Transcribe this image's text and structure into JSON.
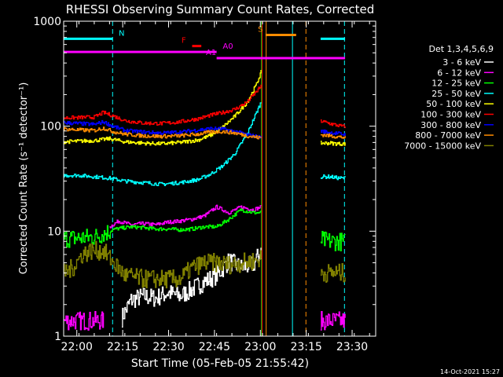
{
  "chart_data": {
    "type": "line",
    "title": "RHESSI Observing Summary Count Rates, Corrected",
    "xlabel": "Start Time (05-Feb-05 21:55:42)",
    "ylabel": "Corrected Count Rate (s⁻¹ detector⁻¹)",
    "yscale": "log",
    "ylim": [
      1,
      1000
    ],
    "xlim_minutes_since_start": [
      0,
      102
    ],
    "x_ticks": [
      {
        "label": "22:00",
        "minute": 4.3
      },
      {
        "label": "22:15",
        "minute": 19.3
      },
      {
        "label": "22:30",
        "minute": 34.3
      },
      {
        "label": "22:45",
        "minute": 49.3
      },
      {
        "label": "23:00",
        "minute": 64.3
      },
      {
        "label": "23:15",
        "minute": 79.3
      },
      {
        "label": "23:30",
        "minute": 94.3
      }
    ],
    "y_ticks": [
      {
        "label": "1",
        "value": 1
      },
      {
        "label": "10",
        "value": 10
      },
      {
        "label": "100",
        "value": 100
      },
      {
        "label": "1000",
        "value": 1000
      }
    ],
    "legend": {
      "title": "Det 1,3,4,5,6,9",
      "placement": "right"
    },
    "series": [
      {
        "name": "3 - 6 keV",
        "color": "#ffffff",
        "segments": [
          {
            "x": [
              19,
              22,
              26,
              30,
              34,
              38,
              42,
              46,
              50,
              54,
              58,
              62,
              64.5
            ],
            "y": [
              1.5,
              2.2,
              2.4,
              2.3,
              2.6,
              2.4,
              2.8,
              3.3,
              3.8,
              5.2,
              4.5,
              4.8,
              6.5
            ]
          }
        ]
      },
      {
        "name": "6 - 12 keV",
        "color": "#ff00ff",
        "segments": [
          {
            "x": [
              0,
              5,
              10,
              13
            ],
            "y": [
              1.4,
              1.4,
              1.4,
              1.4
            ]
          },
          {
            "x": [
              15,
              18,
              22,
              26,
              30,
              34,
              38,
              42,
              46,
              50,
              54,
              58,
              62,
              64.5
            ],
            "y": [
              11,
              12.5,
              11.5,
              11.8,
              11.5,
              12.2,
              12.5,
              13,
              14,
              17,
              15,
              17,
              16,
              17
            ]
          },
          {
            "x": [
              84,
              87,
              90,
              92
            ],
            "y": [
              1.4,
              1.4,
              1.4,
              1.4
            ]
          }
        ]
      },
      {
        "name": "12 - 25 keV",
        "color": "#00ff00",
        "segments": [
          {
            "x": [
              0,
              5,
              10,
              13,
              17,
              22,
              26,
              30,
              34,
              38,
              42,
              46,
              50,
              54,
              58,
              62,
              64.5
            ],
            "y": [
              8.5,
              8.6,
              8.8,
              9.5,
              10.5,
              11,
              10.8,
              10.5,
              10.5,
              10.3,
              10.5,
              11,
              11,
              13,
              16,
              15,
              15
            ]
          },
          {
            "x": [
              84,
              87,
              90,
              92
            ],
            "y": [
              8.2,
              8,
              8,
              7.8
            ]
          }
        ]
      },
      {
        "name": "25 - 50 keV",
        "color": "#00ffff",
        "segments": [
          {
            "x": [
              0,
              5,
              10,
              15,
              20,
              26,
              32,
              38,
              44,
              48,
              52,
              56,
              60,
              64.5
            ],
            "y": [
              34,
              34,
              33,
              32,
              30,
              29,
              28,
              29,
              31,
              35,
              42,
              55,
              85,
              170
            ]
          },
          {
            "x": [
              84,
              87,
              90,
              92
            ],
            "y": [
              33,
              33,
              32,
              32
            ]
          }
        ]
      },
      {
        "name": "50 - 100 keV",
        "color": "#ffff00",
        "segments": [
          {
            "x": [
              0,
              5,
              10,
              15,
              20,
              26,
              32,
              38,
              44,
              48,
              52,
              56,
              60,
              63,
              64.5
            ],
            "y": [
              71,
              72,
              73,
              76,
              71,
              69,
              68,
              70,
              74,
              82,
              98,
              125,
              170,
              250,
              330
            ]
          },
          {
            "x": [
              84,
              87,
              90,
              92
            ],
            "y": [
              69,
              69,
              68,
              68
            ]
          }
        ]
      },
      {
        "name": "100 - 300 keV",
        "color": "#ff0000",
        "segments": [
          {
            "x": [
              0,
              5,
              10,
              13,
              16,
              20,
              26,
              32,
              38,
              44,
              48,
              52,
              56,
              60,
              64.5
            ],
            "y": [
              120,
              121,
              122,
              135,
              126,
              113,
              107,
              106,
              110,
              118,
              127,
              135,
              145,
              170,
              240
            ]
          },
          {
            "x": [
              84,
              87,
              90,
              92
            ],
            "y": [
              112,
              106,
              101,
              99
            ]
          }
        ]
      },
      {
        "name": "300 - 800 keV",
        "color": "#0000ff",
        "segments": [
          {
            "x": [
              0,
              5,
              10,
              13,
              16,
              20,
              26,
              32,
              38,
              44,
              48,
              52,
              56,
              60,
              64.5
            ],
            "y": [
              108,
              106,
              104,
              110,
              100,
              91,
              88,
              86,
              88,
              92,
              95,
              94,
              89,
              83,
              78
            ]
          },
          {
            "x": [
              84,
              87,
              90,
              92
            ],
            "y": [
              90,
              87,
              85,
              83
            ]
          }
        ]
      },
      {
        "name": "800 - 7000 keV",
        "color": "#ff8c00",
        "segments": [
          {
            "x": [
              0,
              5,
              10,
              13,
              16,
              20,
              26,
              32,
              38,
              44,
              48,
              52,
              56,
              60,
              64.5
            ],
            "y": [
              94,
              92,
              91,
              96,
              89,
              84,
              81,
              80,
              81,
              84,
              88,
              89,
              86,
              81,
              77
            ]
          },
          {
            "x": [
              84,
              87,
              90,
              92
            ],
            "y": [
              83,
              81,
              79,
              78
            ]
          }
        ]
      },
      {
        "name": "7000 - 15000 keV",
        "color": "#808000",
        "segments": [
          {
            "x": [
              0,
              3,
              6,
              9,
              13,
              15,
              20,
              26,
              32,
              38,
              42,
              46,
              50,
              54,
              58,
              62,
              64.5
            ],
            "y": [
              4,
              4.5,
              6,
              6.5,
              6.5,
              5.5,
              3.8,
              3.5,
              3.5,
              3.5,
              4.5,
              5,
              5,
              4.8,
              5,
              5.2,
              5.5
            ]
          },
          {
            "x": [
              84,
              87,
              90,
              92
            ],
            "y": [
              4,
              4,
              4,
              4
            ]
          }
        ]
      }
    ],
    "markers": [
      {
        "label": "N",
        "color": "#00ffff",
        "segments": [
          [
            0,
            16
          ],
          [
            84,
            92
          ]
        ],
        "y": 680,
        "label_x": 18
      },
      {
        "label": "F",
        "color": "#ff0000",
        "segments": [
          [
            42,
            45
          ]
        ],
        "y": 580,
        "label_x": 38.5
      },
      {
        "label": "A0",
        "color": "#ff00ff",
        "segments": [
          [
            0,
            50
          ]
        ],
        "y": 510,
        "label_x": 52
      },
      {
        "label": "A1",
        "color": "#ff00ff",
        "segments": [
          [
            50,
            92
          ]
        ],
        "y": 445,
        "label_x": 46.5
      },
      {
        "label": "S",
        "color": "#ff8c00",
        "segments": [
          [
            66,
            76
          ]
        ],
        "y": 740,
        "label_x": 63.5
      }
    ],
    "vertical_lines": [
      {
        "minute": 16,
        "color": "#00ffff",
        "style": "dashed"
      },
      {
        "minute": 64.7,
        "color": "#00ff00",
        "style": "solid"
      },
      {
        "minute": 64.9,
        "color": "#ff0000",
        "style": "solid"
      },
      {
        "minute": 66.2,
        "color": "#ff8c00",
        "style": "solid"
      },
      {
        "minute": 74.8,
        "color": "#00ffff",
        "style": "solid"
      },
      {
        "minute": 79.2,
        "color": "#ff8c00",
        "style": "dashed"
      },
      {
        "minute": 91.8,
        "color": "#00ffff",
        "style": "dashed"
      }
    ]
  },
  "footer": {
    "timestamp": "14-Oct-2021 15:27"
  }
}
